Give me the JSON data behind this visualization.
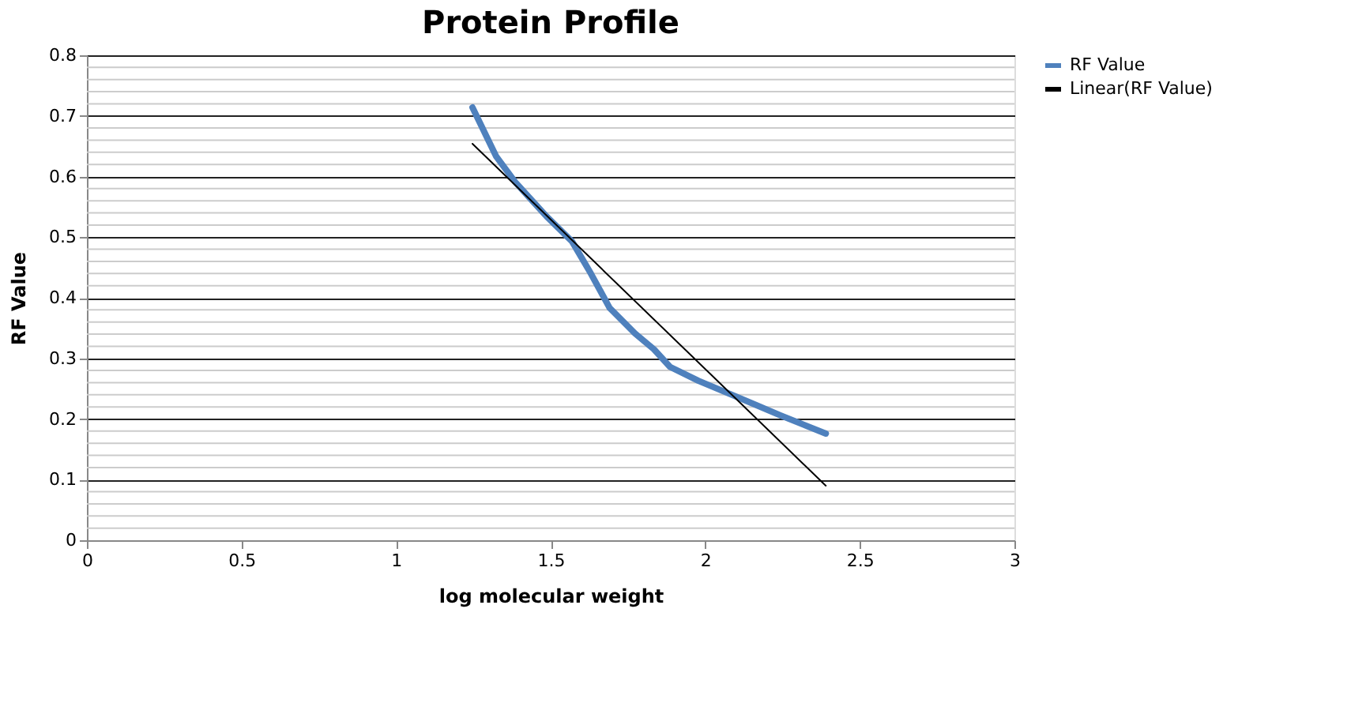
{
  "chart_data": {
    "type": "line",
    "title": "Protein Profile",
    "xlabel": "log molecular weight",
    "ylabel": "RF Value",
    "xlim": [
      0,
      3
    ],
    "xticks": [
      0,
      0.5,
      1,
      1.5,
      2,
      2.5,
      3
    ],
    "ylim": [
      0,
      0.8
    ],
    "yticks": [
      0,
      0.1,
      0.2,
      0.3,
      0.4,
      0.5,
      0.6,
      0.7,
      0.8
    ],
    "grid": "y",
    "legend": "right",
    "marker": "none",
    "series": [
      {
        "name": "RF Value",
        "color": "#4f81bd",
        "x": [
          1.247,
          1.324,
          1.385,
          1.487,
          1.569,
          1.63,
          1.691,
          1.773,
          1.834,
          1.886,
          1.978,
          2.1,
          2.243,
          2.39
        ],
        "values": [
          0.714,
          0.633,
          0.591,
          0.534,
          0.493,
          0.44,
          0.383,
          0.341,
          0.315,
          0.286,
          0.263,
          0.237,
          0.206,
          0.176
        ]
      },
      {
        "name": "Linear(RF Value)",
        "color": "#000000",
        "type": "line",
        "x": [
          1.247,
          2.39
        ],
        "values": [
          0.654,
          0.09
        ]
      }
    ]
  }
}
